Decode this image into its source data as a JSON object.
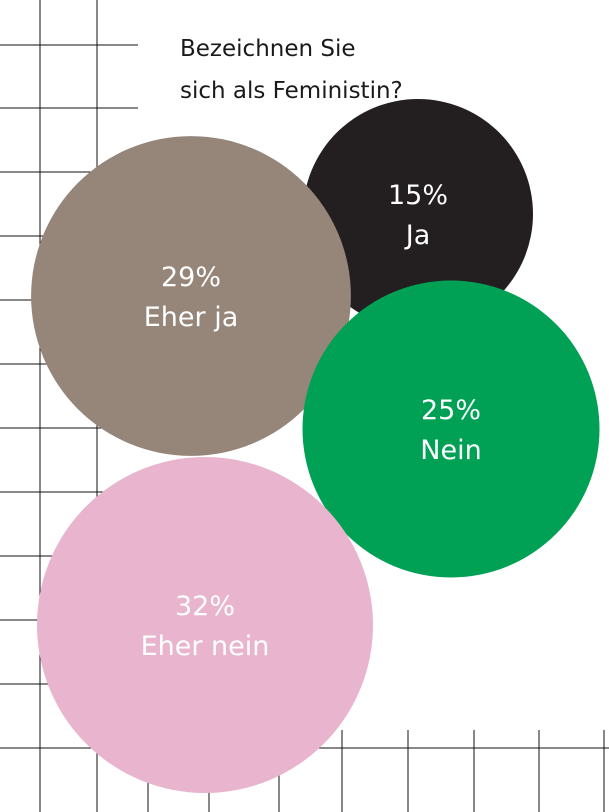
{
  "chart_data": {
    "type": "bubble",
    "title_lines": [
      "Bezeichnen Sie",
      "sich als Feministin?"
    ],
    "unit": "%",
    "slices": [
      {
        "label": "Ja",
        "percent_text": "15%",
        "value": 15,
        "color": "#231f20"
      },
      {
        "label": "Eher ja",
        "percent_text": "29%",
        "value": 29,
        "color": "#968579"
      },
      {
        "label": "Nein",
        "percent_text": "25%",
        "value": 25,
        "color": "#00a155"
      },
      {
        "label": "Eher nein",
        "percent_text": "32%",
        "value": 32,
        "color": "#e8b4ce"
      }
    ],
    "grid": true
  }
}
